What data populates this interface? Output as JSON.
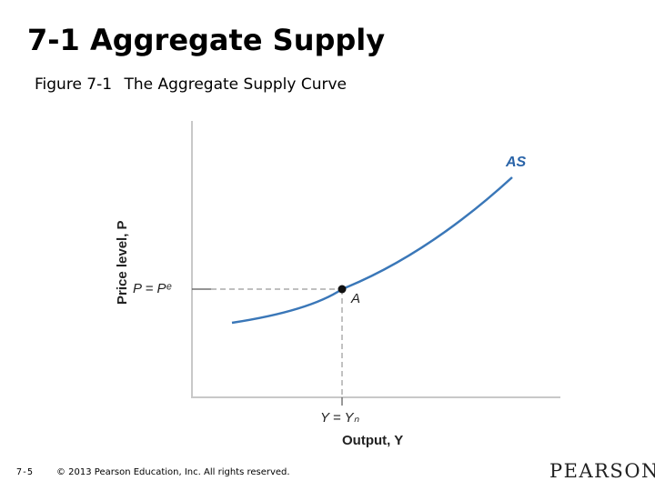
{
  "slide": {
    "title": "7-1 Aggregate Supply",
    "figure_number": "Figure 7-1",
    "figure_title": "The Aggregate Supply Curve"
  },
  "diagram": {
    "y_axis_label": "Price level, P",
    "x_axis_label": "Output, Y",
    "curve_label": "AS",
    "point_label": "A",
    "price_tick_label": "P = Pᵉ",
    "output_tick_label": "Y = Yₙ",
    "colors": {
      "curve": "#3a77b8",
      "curve_label": "#2a64a8",
      "axes": "#c8c8c8",
      "guide": "#999999",
      "point": "#111111"
    }
  },
  "footer": {
    "page_number": "7-5",
    "copyright": "© 2013 Pearson Education, Inc. All rights reserved.",
    "logo_text": "PEARSON"
  }
}
